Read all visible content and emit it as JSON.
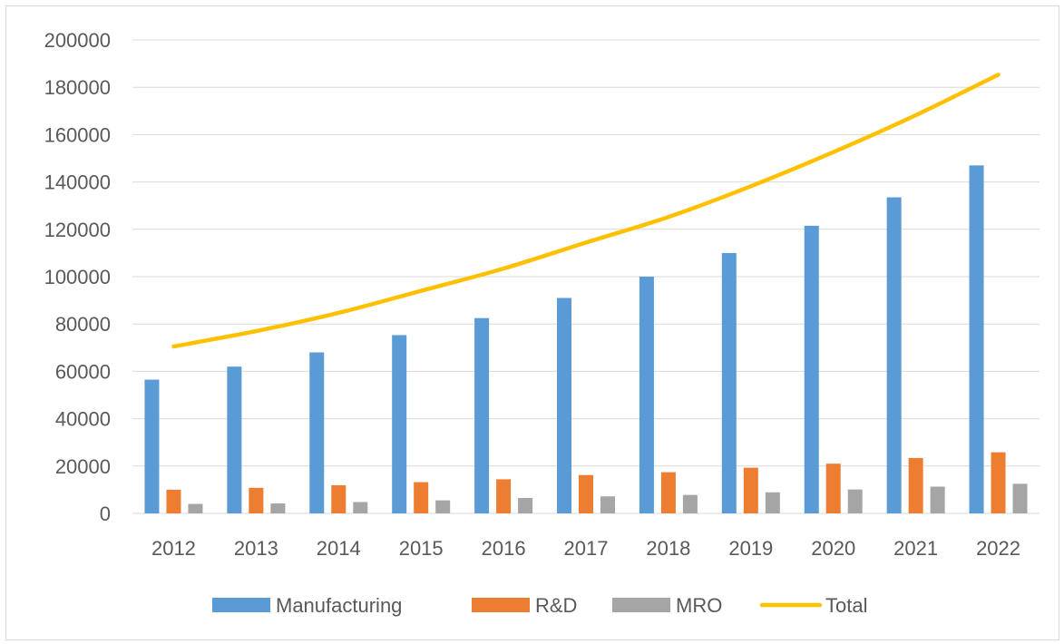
{
  "chart_data": {
    "type": "bar",
    "categories": [
      "2012",
      "2013",
      "2014",
      "2015",
      "2016",
      "2017",
      "2018",
      "2019",
      "2020",
      "2021",
      "2022"
    ],
    "series": [
      {
        "name": "Manufacturing",
        "kind": "bar",
        "color": "#5b9bd5",
        "values": [
          56500,
          62000,
          68000,
          75300,
          82500,
          91000,
          100000,
          110000,
          121500,
          133500,
          147000
        ]
      },
      {
        "name": "R&D",
        "kind": "bar",
        "color": "#ed7d31",
        "values": [
          10000,
          10800,
          11900,
          13200,
          14400,
          16200,
          17400,
          19300,
          21000,
          23400,
          25800
        ]
      },
      {
        "name": "MRO",
        "kind": "bar",
        "color": "#a5a5a5",
        "values": [
          4000,
          4200,
          4800,
          5500,
          6500,
          7200,
          7800,
          8900,
          10100,
          11300,
          12500
        ]
      },
      {
        "name": "Total",
        "kind": "line",
        "color": "#ffc000",
        "values": [
          70500,
          77000,
          84700,
          94000,
          103400,
          114400,
          125200,
          138200,
          152600,
          168200,
          185300
        ]
      }
    ],
    "ylim": [
      0,
      200000
    ],
    "yticks": [
      "0",
      "20000",
      "40000",
      "60000",
      "80000",
      "100000",
      "120000",
      "140000",
      "160000",
      "180000",
      "200000"
    ],
    "grid": true,
    "legend_position": "bottom"
  }
}
